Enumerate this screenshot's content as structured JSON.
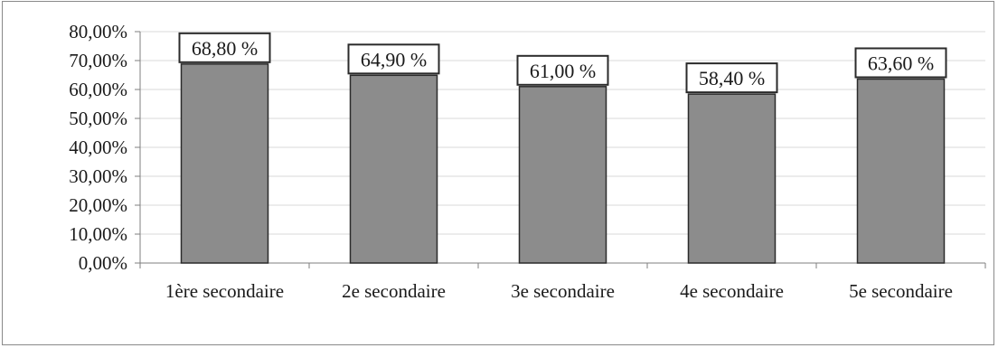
{
  "chart_data": {
    "type": "bar",
    "title": "",
    "xlabel": "",
    "ylabel": "",
    "categories": [
      "1ère secondaire",
      "2e secondaire",
      "3e secondaire",
      "4e secondaire",
      "5e secondaire"
    ],
    "values": [
      68.8,
      64.9,
      61.0,
      58.4,
      63.6
    ],
    "data_labels": [
      "68,80 %",
      "64,90 %",
      "61,00 %",
      "58,40 %",
      "63,60 %"
    ],
    "ylim": [
      0,
      80
    ],
    "yticks": [
      0,
      10,
      20,
      30,
      40,
      50,
      60,
      70,
      80
    ],
    "ytick_labels": [
      "0,00%",
      "10,00%",
      "20,00%",
      "30,00%",
      "40,00%",
      "50,00%",
      "60,00%",
      "70,00%",
      "80,00%"
    ],
    "grid": true,
    "legend": "none",
    "colors": {
      "bar": "#8c8c8c",
      "bar_edge": "#2b2b2b",
      "grid": "#d9d9d9",
      "axis": "#7f7f7f"
    }
  }
}
